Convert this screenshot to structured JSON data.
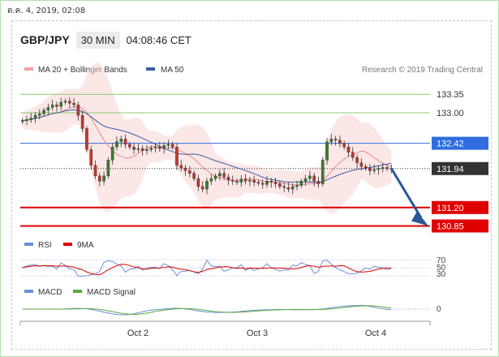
{
  "header": {
    "datestamp": "ต.ค. 4, 2019, 02:08",
    "pair": "GBP/JPY",
    "timeframe": "30 MIN",
    "clock": "04:08:46 CET"
  },
  "colors": {
    "bullish": "#3a7d2c",
    "bearish": "#c0392b",
    "bollinger": "#f9d4d4",
    "ma20": "#e88a8a",
    "ma50": "#3b5fa0",
    "resistance": "#8fc970",
    "pivot": "#2f6de0",
    "support": "#e00000",
    "current": "#333333"
  },
  "chart_data": [
    {
      "type": "line",
      "title": "GBP/JPY",
      "legend": [
        "MA 20 + Bollinger Bands",
        "MA 50"
      ],
      "watermark": "Research © 2019 Trading Central",
      "x_ticks": [
        "Oct 2",
        "Oct 3",
        "Oct 4"
      ],
      "levels": [
        {
          "name": "resistance",
          "value": "133.35"
        },
        {
          "name": "resistance",
          "value": "133.00"
        },
        {
          "name": "pivot",
          "value": "132.42"
        },
        {
          "name": "last",
          "value": "131.94"
        },
        {
          "name": "support",
          "value": "131.20"
        },
        {
          "name": "support",
          "value": "130.85"
        }
      ],
      "ylim": [
        130.75,
        133.6
      ],
      "close_series": [
        132.85,
        132.87,
        132.9,
        132.95,
        132.98,
        133.05,
        133.1,
        133.15,
        133.12,
        133.2,
        133.22,
        133.18,
        133.15,
        132.95,
        132.7,
        132.3,
        132.0,
        131.8,
        131.7,
        131.8,
        132.1,
        132.35,
        132.45,
        132.5,
        132.4,
        132.35,
        132.3,
        132.32,
        132.28,
        132.3,
        132.33,
        132.35,
        132.32,
        132.38,
        132.4,
        132.35,
        132.0,
        131.95,
        131.9,
        131.85,
        131.75,
        131.6,
        131.55,
        131.7,
        131.75,
        131.8,
        131.85,
        131.78,
        131.72,
        131.7,
        131.68,
        131.74,
        131.7,
        131.72,
        131.68,
        131.66,
        131.64,
        131.7,
        131.68,
        131.65,
        131.6,
        131.58,
        131.55,
        131.6,
        131.62,
        131.7,
        131.75,
        131.8,
        131.7,
        131.65,
        132.1,
        132.45,
        132.5,
        132.48,
        132.42,
        132.35,
        132.25,
        132.15,
        132.05,
        131.98,
        131.95,
        131.9,
        131.92,
        131.94,
        131.96,
        131.94,
        131.94
      ],
      "projection": {
        "from": 131.94,
        "to": 130.85
      }
    },
    {
      "type": "line",
      "legend": [
        "RSI",
        "9MA"
      ],
      "y_ticks": [
        "70",
        "50",
        "30"
      ]
    },
    {
      "type": "line",
      "legend": [
        "MACD",
        "MACD Signal"
      ],
      "y_ticks": [
        "0"
      ]
    }
  ]
}
